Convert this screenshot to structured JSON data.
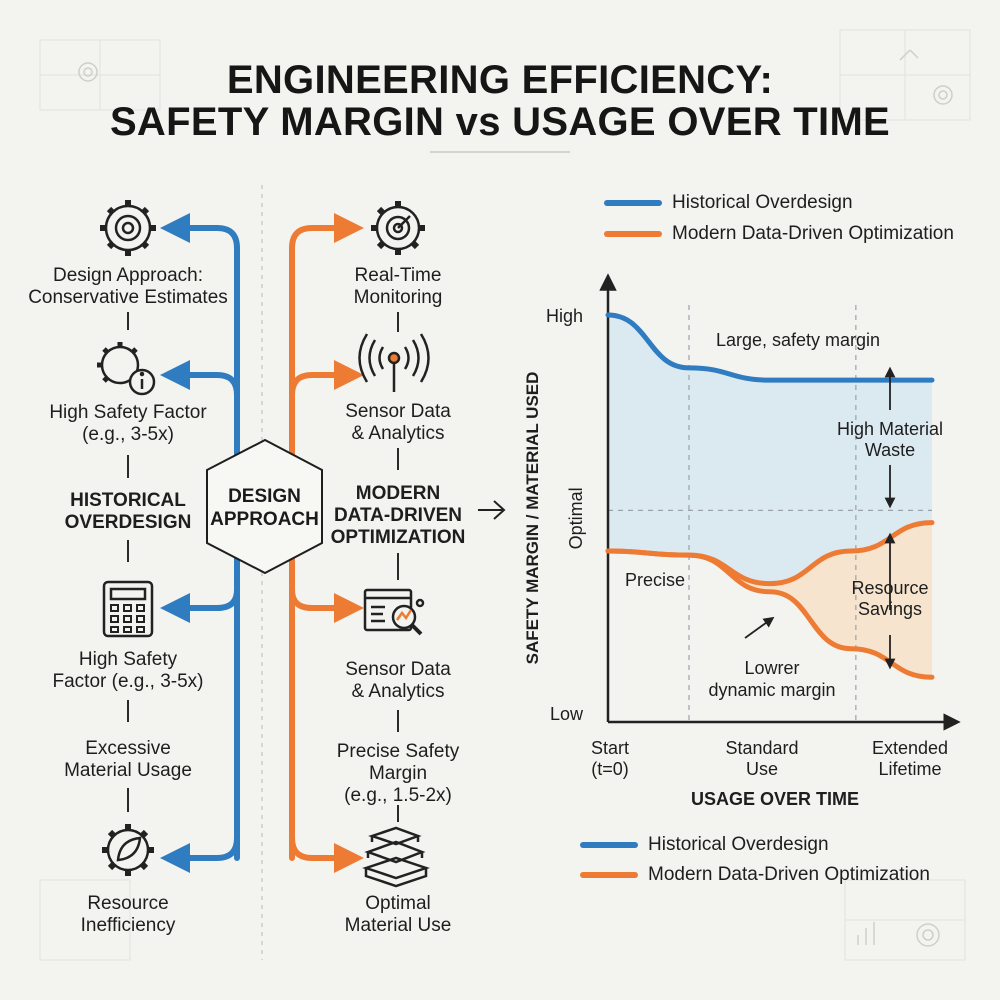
{
  "title": {
    "line1": "ENGINEERING EFFICIENCY:",
    "line2": "SAFETY MARGIN vs USAGE OVER TIME"
  },
  "colors": {
    "historical": "#2f7cc0",
    "modern": "#ee7b34",
    "waste_fill": "#dbe9f1",
    "savings_fill": "#f7e4cf",
    "background": "#f3f3ef"
  },
  "left_column": {
    "items": [
      {
        "line1": "Design Approach:",
        "line2": "Conservative Estimates",
        "icon": "gear-target-icon"
      },
      {
        "line1": "High Safety Factor",
        "line2": "(e.g., 3-5x)",
        "icon": "gear-info-icon"
      },
      {
        "line1": "High Safety",
        "line2": "Factor (e.g., 3-5x)",
        "icon": "calculator-icon"
      },
      {
        "line1": "Excessive",
        "line2": "Material Usage",
        "icon": ""
      },
      {
        "line1": "Resource",
        "line2": "Inefficiency",
        "icon": "gear-leaf-icon"
      }
    ],
    "heading_line1": "HISTORICAL",
    "heading_line2": "OVERDESIGN"
  },
  "center": {
    "hex_line1": "DESIGN",
    "hex_line2": "APPROACH"
  },
  "right_column": {
    "items": [
      {
        "line1": "Real-Time",
        "line2": "Monitoring",
        "icon": "gear-target-icon"
      },
      {
        "line1": "Sensor Data",
        "line2": "& Analytics",
        "icon": "antenna-icon"
      },
      {
        "line1": "Sensor Data",
        "line2": "& Analytics",
        "icon": "chart-magnifier-icon"
      },
      {
        "line1": "Precise Safety",
        "line2": "Margin",
        "line3": "(e.g., 1.5-2x)",
        "icon": ""
      },
      {
        "line1": "Optimal",
        "line2": "Material Use",
        "icon": "stacked-blocks-icon"
      }
    ],
    "heading_line1": "MODERN",
    "heading_line2": "DATA-DRIVEN",
    "heading_line3": "OPTIMIZATION"
  },
  "chart_legend_top": [
    {
      "label": "Historical Overdesign",
      "color": "#2f7cc0"
    },
    {
      "label": "Modern Data-Driven Optimization",
      "color": "#ee7b34"
    }
  ],
  "chart_legend_bottom": [
    {
      "label": "Historical Overdesign",
      "color": "#2f7cc0"
    },
    {
      "label": "Modern Data-Driven Optimization",
      "color": "#ee7b34"
    }
  ],
  "chart_data": {
    "type": "line",
    "title": "",
    "xlabel": "USAGE OVER TIME",
    "ylabel": "SAFETY MARGIN / MATERIAL USED",
    "x_ticks": [
      {
        "line1": "Start",
        "line2": "(t=0)"
      },
      {
        "line1": "Standard",
        "line2": "Use"
      },
      {
        "line1": "Extended",
        "line2": "Lifetime"
      }
    ],
    "y_ticks": {
      "high": "High",
      "optimal": "Optimal",
      "low": "Low"
    },
    "series": [
      {
        "name": "Historical Overdesign",
        "color": "#2f7cc0",
        "x": [
          0,
          0.25,
          0.5,
          1.0
        ],
        "y": [
          1.0,
          0.87,
          0.84,
          0.84
        ]
      },
      {
        "name": "Modern Data-Driven Optimization",
        "color": "#ee7b34",
        "x": [
          0,
          0.25,
          0.5,
          0.75,
          1.0
        ],
        "y": [
          0.42,
          0.41,
          0.32,
          0.18,
          0.11
        ]
      },
      {
        "name": "Modern Data-Driven Optimization",
        "color": "#ee7b34",
        "x": [
          0,
          0.25,
          0.5,
          0.75,
          1.0
        ],
        "y": [
          0.42,
          0.41,
          0.34,
          0.42,
          0.49
        ]
      }
    ],
    "annotations": {
      "large_margin": "Large, safety margin",
      "waste_line1": "High Material",
      "waste_line2": "Waste",
      "precise": "Precise",
      "savings_line1": "Resource",
      "savings_line2": "Savings",
      "lower_line1": "Lowrer",
      "lower_line2": "dynamic margin"
    }
  }
}
